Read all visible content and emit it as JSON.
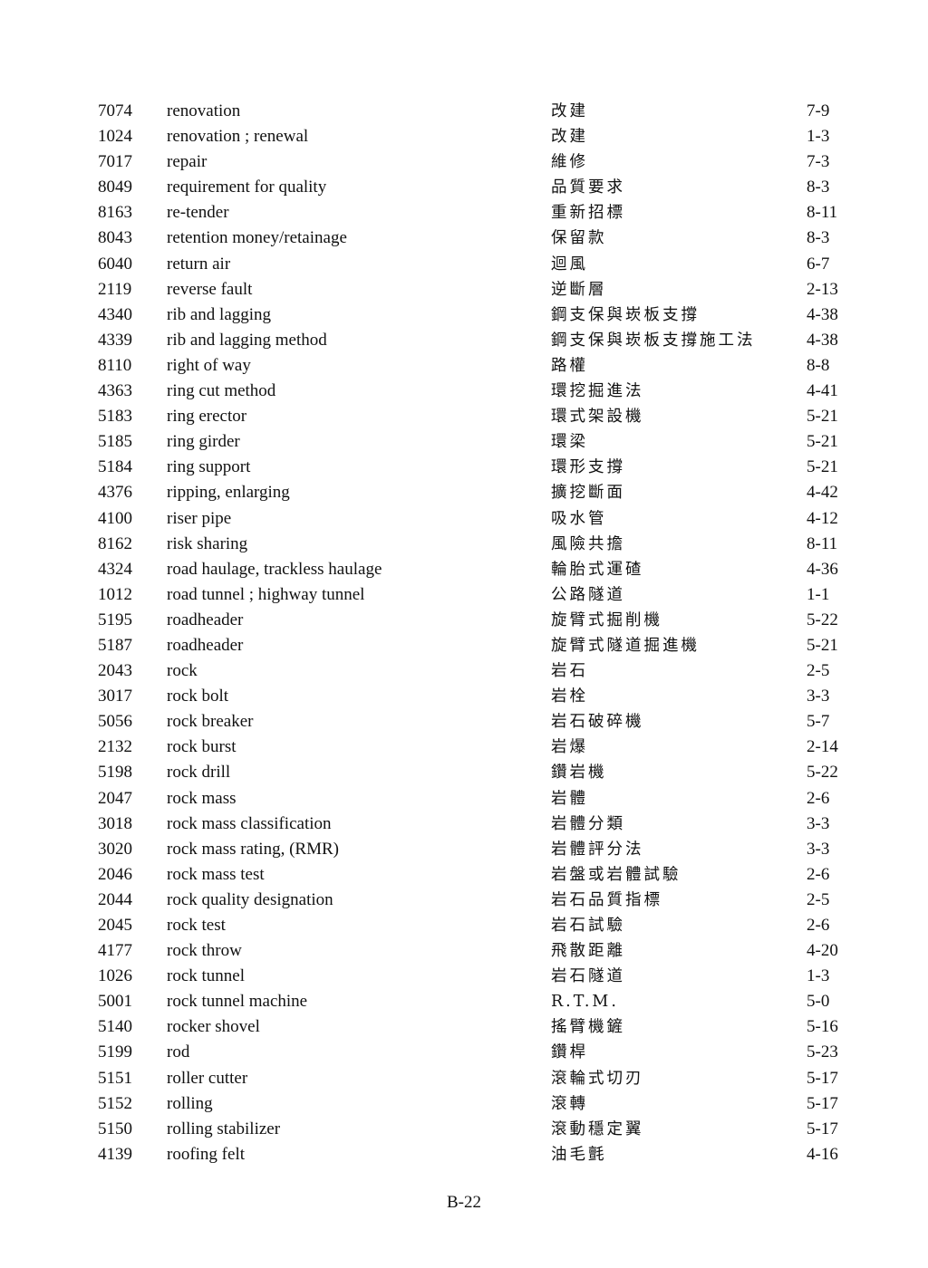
{
  "entries": [
    [
      "7074",
      "renovation",
      "改建",
      "7-9"
    ],
    [
      "1024",
      "renovation ; renewal",
      "改建",
      "1-3"
    ],
    [
      "7017",
      "repair",
      "維修",
      "7-3"
    ],
    [
      "8049",
      "requirement for quality",
      "品質要求",
      "8-3"
    ],
    [
      "8163",
      "re-tender",
      "重新招標",
      "8-11"
    ],
    [
      "8043",
      "retention money/retainage",
      "保留款",
      "8-3"
    ],
    [
      "6040",
      "return air",
      "迴風",
      "6-7"
    ],
    [
      "2119",
      "reverse fault",
      "逆斷層",
      "2-13"
    ],
    [
      "4340",
      "rib and lagging",
      "鋼支保與崁板支撐",
      "4-38"
    ],
    [
      "4339",
      "rib and lagging method",
      "鋼支保與崁板支撐施工法",
      "4-38"
    ],
    [
      "8110",
      "right of way",
      "路權",
      "8-8"
    ],
    [
      "4363",
      "ring cut method",
      "環挖掘進法",
      "4-41"
    ],
    [
      "5183",
      "ring erector",
      "環式架設機",
      "5-21"
    ],
    [
      "5185",
      "ring girder",
      "環梁",
      "5-21"
    ],
    [
      "5184",
      "ring support",
      "環形支撐",
      "5-21"
    ],
    [
      "4376",
      "ripping, enlarging",
      "擴挖斷面",
      "4-42"
    ],
    [
      "4100",
      "riser pipe",
      "吸水管",
      "4-12"
    ],
    [
      "8162",
      "risk sharing",
      "風險共擔",
      "8-11"
    ],
    [
      "4324",
      "road haulage, trackless haulage",
      "輪胎式運碴",
      "4-36"
    ],
    [
      "1012",
      "road tunnel ; highway tunnel",
      "公路隧道",
      "1-1"
    ],
    [
      "5195",
      "roadheader",
      "旋臂式掘削機",
      "5-22"
    ],
    [
      "5187",
      "roadheader",
      "旋臂式隧道掘進機",
      "5-21"
    ],
    [
      "2043",
      "rock",
      "岩石",
      "2-5"
    ],
    [
      "3017",
      "rock bolt",
      "岩栓",
      "3-3"
    ],
    [
      "5056",
      "rock breaker",
      "岩石破碎機",
      "5-7"
    ],
    [
      "2132",
      "rock burst",
      "岩爆",
      "2-14"
    ],
    [
      "5198",
      "rock drill",
      "鑽岩機",
      "5-22"
    ],
    [
      "2047",
      "rock mass",
      "岩體",
      "2-6"
    ],
    [
      "3018",
      "rock mass classification",
      "岩體分類",
      "3-3"
    ],
    [
      "3020",
      "rock mass rating, (RMR)",
      "岩體評分法",
      "3-3"
    ],
    [
      "2046",
      "rock mass test",
      "岩盤或岩體試驗",
      "2-6"
    ],
    [
      "2044",
      "rock quality designation",
      "岩石品質指標",
      "2-5"
    ],
    [
      "2045",
      "rock test",
      "岩石試驗",
      "2-6"
    ],
    [
      "4177",
      "rock throw",
      "飛散距離",
      "4-20"
    ],
    [
      "1026",
      "rock tunnel",
      "岩石隧道",
      "1-3"
    ],
    [
      "5001",
      "rock tunnel machine",
      "R.T.M.",
      "5-0"
    ],
    [
      "5140",
      "rocker shovel",
      "搖臂機鏟",
      "5-16"
    ],
    [
      "5199",
      "rod",
      "鑽桿",
      "5-23"
    ],
    [
      "5151",
      "roller cutter",
      "滾輪式切刃",
      "5-17"
    ],
    [
      "5152",
      "rolling",
      "滾轉",
      "5-17"
    ],
    [
      "5150",
      "rolling stabilizer",
      "滾動穩定翼",
      "5-17"
    ],
    [
      "4139",
      "roofing felt",
      "油毛氈",
      "4-16"
    ]
  ],
  "footer": {
    "page_number": "B-22"
  }
}
